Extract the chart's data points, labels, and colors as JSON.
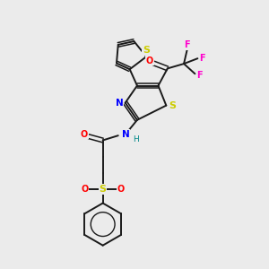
{
  "background_color": "#ebebeb",
  "bond_color": "#1a1a1a",
  "atom_colors": {
    "S": "#cccc00",
    "N": "#0000ff",
    "O": "#ff0000",
    "F": "#ff00cc",
    "H": "#008888",
    "C": "#1a1a1a"
  },
  "figsize": [
    3.0,
    3.0
  ],
  "dpi": 100
}
